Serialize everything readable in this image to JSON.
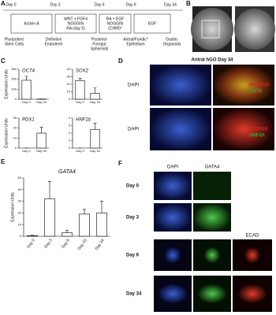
{
  "panels": {
    "A": {
      "label": "A",
      "days": [
        "Day 0",
        "Day 3",
        "Day 6",
        "Day 9",
        "Day 34"
      ],
      "treatments": [
        [
          "Activin A"
        ],
        [
          "WNT + FGF4",
          "NOGGIN",
          "RA (day 5)"
        ],
        [
          "RA + EGF",
          "NOGGIN",
          "(CHIR)*"
        ],
        [
          "EGF"
        ]
      ],
      "stages": [
        [
          "Pluripotent",
          "Stem Cells"
        ],
        [
          "Definitive",
          "Endoderm"
        ],
        [
          "Posterior",
          "Foregut",
          "Spheroids"
        ],
        [
          "Antral/Fundic*",
          "Epithelium"
        ],
        [
          "Gastric",
          "Organoids"
        ]
      ]
    },
    "B": {
      "label": "B"
    },
    "C": {
      "label": "C"
    },
    "D": {
      "label": "D",
      "title": "Antral hGO Day 34",
      "rows": [
        "DAPI",
        "DAPI"
      ],
      "markers": [
        [
          "MUC5AC",
          "KRT8"
        ],
        [
          "CLDN18",
          "HNF4A"
        ]
      ]
    },
    "E": {
      "label": "E"
    },
    "F": {
      "label": "F",
      "columns": [
        "DAPI",
        "GATA4",
        "ECAD"
      ],
      "rows": [
        "Day 0",
        "Day 3",
        "Day 6",
        "Day 34"
      ]
    }
  },
  "chart_data": [
    {
      "type": "bar",
      "title": "OCT4",
      "ylabel": "Expression Units",
      "categories": [
        "Day 0",
        "Day 34"
      ],
      "values": [
        190,
        2
      ],
      "errors": [
        40,
        1
      ],
      "ylim": [
        0,
        300
      ],
      "yticks": [
        0,
        100,
        200,
        300
      ],
      "color": "#ffffff"
    },
    {
      "type": "bar",
      "title": "SOX2",
      "categories": [
        "Day 0",
        "Day 34"
      ],
      "values": [
        25,
        8
      ],
      "errors": [
        3,
        7
      ],
      "ylim": [
        0,
        40
      ],
      "yticks": [
        0,
        10,
        20,
        30,
        40
      ],
      "color": "#ffffff"
    },
    {
      "type": "bar",
      "title": "PDX1",
      "ylabel": "Expression Units",
      "categories": [
        "Day 0",
        "Day 34"
      ],
      "values": [
        0,
        15
      ],
      "errors": [
        0,
        6
      ],
      "ylim": [
        0,
        30
      ],
      "yticks": [
        0,
        10,
        20,
        30
      ],
      "color": "#ffffff"
    },
    {
      "type": "bar",
      "title": "HNF1b",
      "categories": [
        "Day 0",
        "Day 34"
      ],
      "values": [
        0,
        2.5
      ],
      "errors": [
        0,
        0.8
      ],
      "ylim": [
        0,
        4
      ],
      "yticks": [
        0,
        1,
        2,
        3,
        4
      ],
      "color": "#ffffff"
    },
    {
      "type": "bar",
      "title": "GATA4",
      "ylabel": "Expression Units",
      "categories": [
        "Day 0",
        "Day 3",
        "Day 6",
        "Day 20",
        "Day 34"
      ],
      "values": [
        0.5,
        32,
        3,
        19,
        20
      ],
      "errors": [
        0.3,
        15,
        2,
        4,
        10
      ],
      "ylim": [
        0,
        50
      ],
      "yticks": [
        0,
        10,
        20,
        30,
        40,
        50
      ],
      "color": "#ffffff"
    }
  ]
}
